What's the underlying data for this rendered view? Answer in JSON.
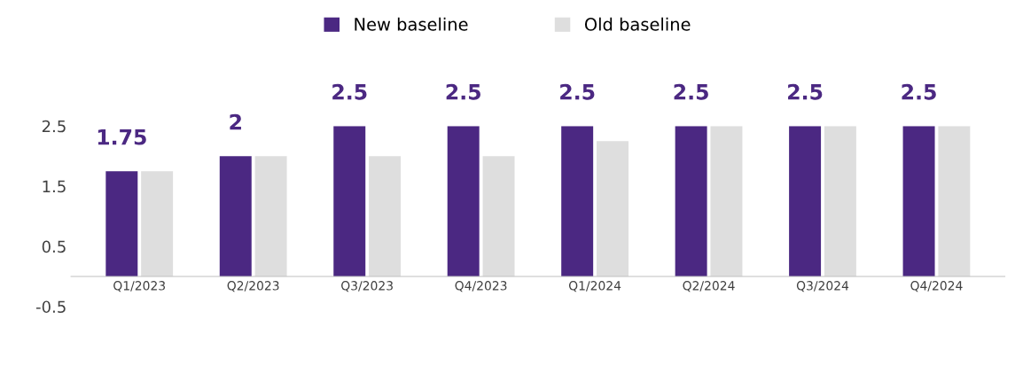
{
  "chart_data": {
    "type": "bar",
    "categories": [
      "Q1/2023",
      "Q2/2023",
      "Q3/2023",
      "Q4/2023",
      "Q1/2024",
      "Q2/2024",
      "Q3/2024",
      "Q4/2024"
    ],
    "series": [
      {
        "name": "New baseline",
        "color": "#4b2882",
        "values": [
          1.75,
          2,
          2.5,
          2.5,
          2.5,
          2.5,
          2.5,
          2.5
        ],
        "value_labels": [
          "1.75",
          "2",
          "2.5",
          "2.5",
          "2.5",
          "2.5",
          "2.5",
          "2.5"
        ]
      },
      {
        "name": "Old baseline",
        "color": "#dedede",
        "values": [
          1.75,
          2,
          2,
          2,
          2.25,
          2.5,
          2.5,
          2.5
        ]
      }
    ],
    "ylim": [
      -0.5,
      2.5
    ],
    "yticks": [
      -0.5,
      0.5,
      1.5,
      2.5
    ],
    "grid": false,
    "legend": "top"
  }
}
